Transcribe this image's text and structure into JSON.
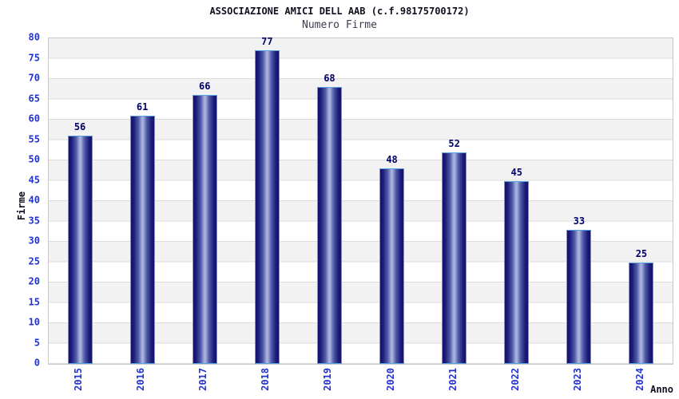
{
  "chart_data": {
    "type": "bar",
    "title": "ASSOCIAZIONE AMICI DELL AAB (c.f.98175700172)",
    "subtitle": "Numero Firme",
    "categories": [
      "2015",
      "2016",
      "2017",
      "2018",
      "2019",
      "2020",
      "2021",
      "2022",
      "2023",
      "2024"
    ],
    "values": [
      56,
      61,
      66,
      77,
      68,
      48,
      52,
      45,
      33,
      25
    ],
    "xlabel": "Anno",
    "ylabel": "Firme",
    "ylim": [
      0,
      80
    ],
    "ytick_step": 5,
    "grid": "horizontal-bands-alternating",
    "legend_position": "none",
    "colors": {
      "bar_border": "#55a0e0",
      "bar_edge_dark": "#13136c",
      "bar_center_light": "#a9b3de",
      "axis_tick_label": "#2233cc",
      "bar_value_label": "#000066",
      "band_gray": "#f2f2f2",
      "gridline": "#dcdcdc",
      "title_color": "#101020",
      "subtitle_color": "#3c3c50"
    }
  }
}
